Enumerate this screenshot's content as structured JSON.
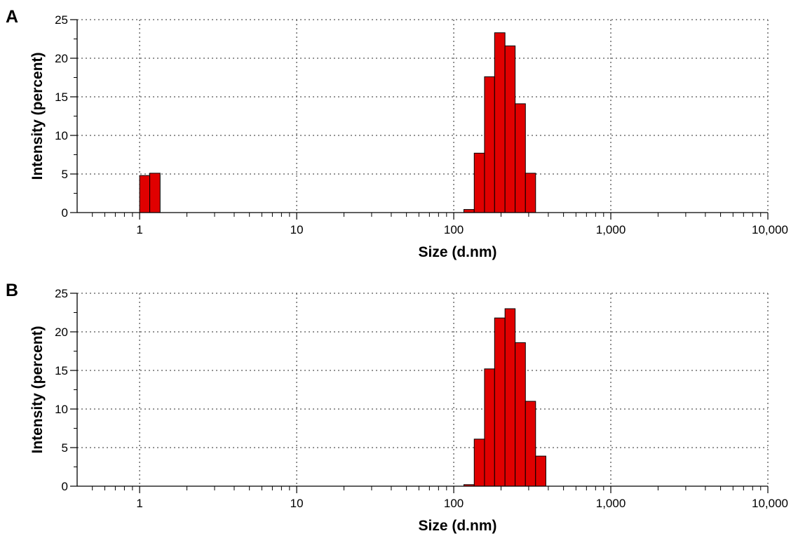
{
  "chart_data": [
    {
      "type": "bar",
      "panel_label": "A",
      "xlabel": "Size (d.nm)",
      "ylabel": "Intensity (percent)",
      "x_scale": "log",
      "xlim": [
        0.4,
        10000
      ],
      "ylim": [
        0,
        25
      ],
      "x_tick_labels": [
        "1",
        "10",
        "100",
        "1,000",
        "10,000"
      ],
      "x_tick_values": [
        1,
        10,
        100,
        1000,
        10000
      ],
      "y_tick_labels": [
        "0",
        "5",
        "10",
        "15",
        "20",
        "25"
      ],
      "y_tick_values": [
        0,
        5,
        10,
        15,
        20,
        25
      ],
      "grid": true,
      "bar_color": "#e00000",
      "bins": [
        {
          "x0": 1.0,
          "x1": 1.16,
          "value": 4.8
        },
        {
          "x0": 1.16,
          "x1": 1.35,
          "value": 5.1
        },
        {
          "x0": 116,
          "x1": 135,
          "value": 0.4
        },
        {
          "x0": 135,
          "x1": 157,
          "value": 7.7
        },
        {
          "x0": 157,
          "x1": 182,
          "value": 17.6
        },
        {
          "x0": 182,
          "x1": 212,
          "value": 23.3
        },
        {
          "x0": 212,
          "x1": 246,
          "value": 21.6
        },
        {
          "x0": 246,
          "x1": 286,
          "value": 14.1
        },
        {
          "x0": 286,
          "x1": 332,
          "value": 5.1
        }
      ]
    },
    {
      "type": "bar",
      "panel_label": "B",
      "xlabel": "Size (d.nm)",
      "ylabel": "Intensity (percent)",
      "x_scale": "log",
      "xlim": [
        0.4,
        10000
      ],
      "ylim": [
        0,
        25
      ],
      "x_tick_labels": [
        "1",
        "10",
        "100",
        "1,000",
        "10,000"
      ],
      "x_tick_values": [
        1,
        10,
        100,
        1000,
        10000
      ],
      "y_tick_labels": [
        "0",
        "5",
        "10",
        "15",
        "20",
        "25"
      ],
      "y_tick_values": [
        0,
        5,
        10,
        15,
        20,
        25
      ],
      "grid": true,
      "bar_color": "#e00000",
      "bins": [
        {
          "x0": 116,
          "x1": 135,
          "value": 0.2
        },
        {
          "x0": 135,
          "x1": 157,
          "value": 6.1
        },
        {
          "x0": 157,
          "x1": 182,
          "value": 15.2
        },
        {
          "x0": 182,
          "x1": 212,
          "value": 21.8
        },
        {
          "x0": 212,
          "x1": 246,
          "value": 23.0
        },
        {
          "x0": 246,
          "x1": 286,
          "value": 18.6
        },
        {
          "x0": 286,
          "x1": 332,
          "value": 11.0
        },
        {
          "x0": 332,
          "x1": 386,
          "value": 3.9
        }
      ]
    }
  ]
}
